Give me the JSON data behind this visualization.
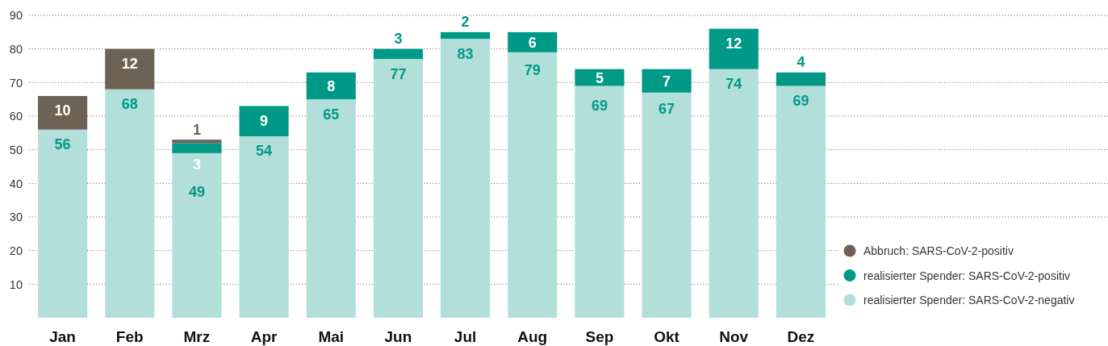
{
  "chart_data": {
    "type": "bar",
    "stacked": true,
    "categories": [
      "Jan",
      "Feb",
      "Mrz",
      "Apr",
      "Mai",
      "Jun",
      "Jul",
      "Aug",
      "Sep",
      "Okt",
      "Nov",
      "Dez"
    ],
    "series": [
      {
        "name": "realisierter Spender: SARS-CoV-2-negativ",
        "color": "#b2dfda",
        "values": [
          56,
          68,
          49,
          54,
          65,
          77,
          83,
          79,
          69,
          67,
          74,
          69
        ]
      },
      {
        "name": "realisierter Spender: SARS-CoV-2-positiv",
        "color": "#009886",
        "values": [
          null,
          null,
          3,
          9,
          8,
          3,
          2,
          6,
          5,
          7,
          12,
          4
        ]
      },
      {
        "name": "Abbruch: SARS-CoV-2-positiv",
        "color": "#6e6254",
        "values": [
          10,
          12,
          1,
          null,
          null,
          null,
          null,
          null,
          null,
          null,
          null,
          null
        ]
      }
    ],
    "ylim": [
      0,
      90
    ],
    "yticks": [
      10,
      20,
      30,
      40,
      50,
      60,
      70,
      80,
      90
    ],
    "grid": "y",
    "legend": "bottom right",
    "data_labels": true
  }
}
